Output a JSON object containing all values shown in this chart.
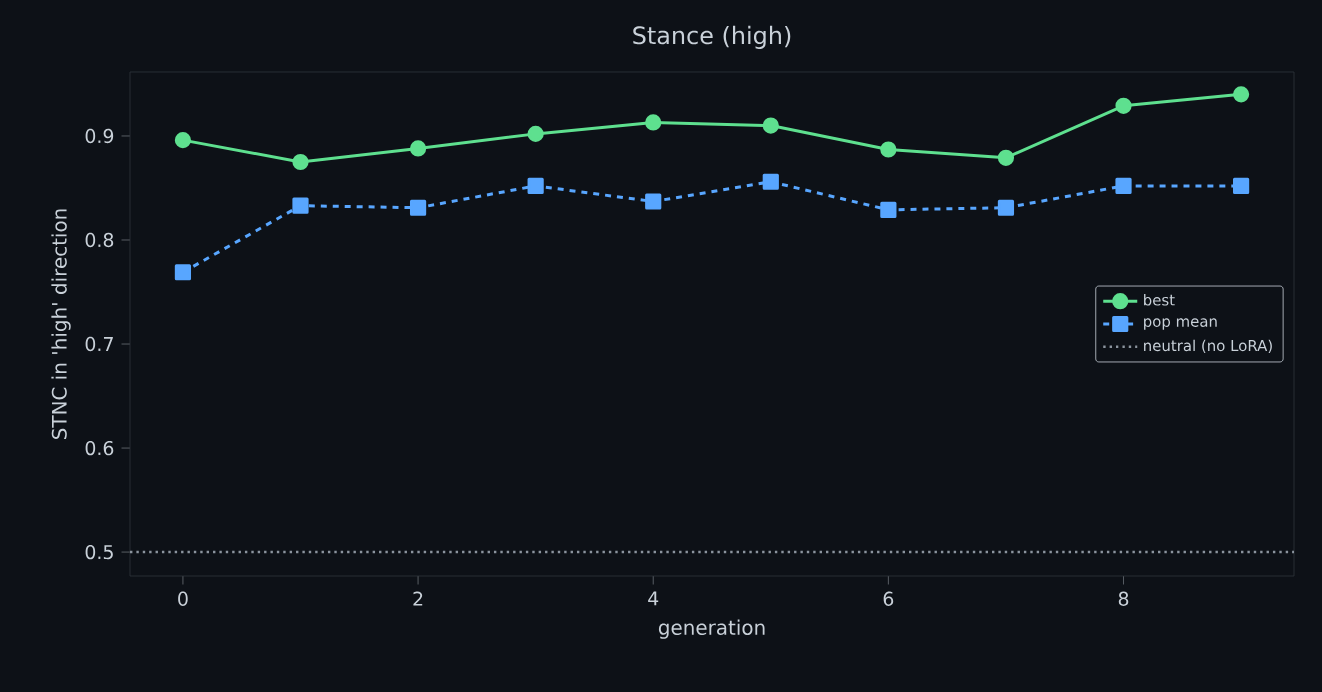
{
  "chart_data": {
    "type": "line",
    "title": "Stance (high)",
    "xlabel": "generation",
    "ylabel": "STNC in 'high' direction",
    "x": [
      0,
      1,
      2,
      3,
      4,
      5,
      6,
      7,
      8,
      9
    ],
    "series": [
      {
        "name": "best",
        "color": "#5ee08f",
        "marker": "circle",
        "line_style": "solid",
        "values": [
          0.896,
          0.875,
          0.888,
          0.902,
          0.913,
          0.91,
          0.887,
          0.879,
          0.929,
          0.94
        ]
      },
      {
        "name": "pop mean",
        "color": "#58a6ff",
        "marker": "square",
        "line_style": "dashed",
        "values": [
          0.769,
          0.833,
          0.831,
          0.852,
          0.837,
          0.856,
          0.829,
          0.831,
          0.852,
          0.852
        ]
      }
    ],
    "ref_lines": [
      {
        "axis": "y",
        "value": 0.5,
        "label": "neutral (no LoRA)",
        "color": "#8b949e",
        "line_style": "dotted"
      }
    ],
    "xlim": [
      -0.45,
      9.45
    ],
    "ylim": [
      0.477,
      0.9615
    ],
    "xticks": [
      0,
      2,
      4,
      6,
      8
    ],
    "yticks": [
      0.5,
      0.6,
      0.7,
      0.8,
      0.9
    ],
    "grid": false,
    "legend": "right"
  }
}
